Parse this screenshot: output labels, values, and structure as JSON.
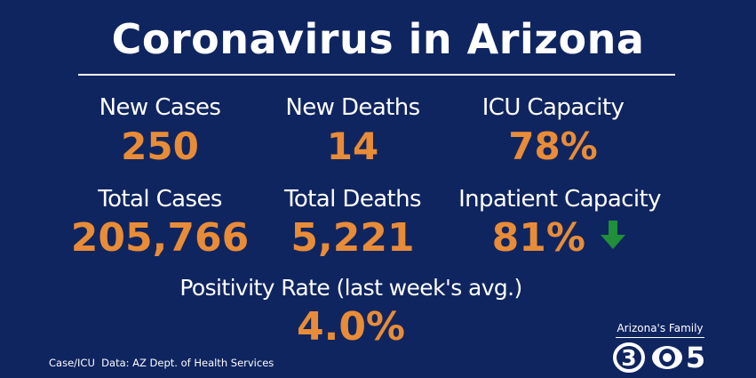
{
  "title": "Coronavirus in Arizona",
  "stats": {
    "new_cases": {
      "label": "New Cases",
      "value": "250"
    },
    "new_deaths": {
      "label": "New Deaths",
      "value": "14"
    },
    "icu_capacity": {
      "label": "ICU Capacity",
      "value": "78%"
    },
    "total_cases": {
      "label": "Total Cases",
      "value": "205,766"
    },
    "total_deaths": {
      "label": "Total Deaths",
      "value": "5,221"
    },
    "inpatient_capacity": {
      "label": "Inpatient Capacity",
      "value": "81%",
      "trend_icon": "arrow-down-icon",
      "trend_color": "#1f8f3a"
    },
    "positivity_rate": {
      "label": "Positivity Rate (last week's avg.)",
      "value": "4.0%"
    }
  },
  "source_note": "Case/ICU  Data: AZ Dept. of Health Services",
  "brand": {
    "name": "Arizona's Family",
    "logo_marks": [
      "3",
      "5"
    ]
  },
  "colors": {
    "background": "#0f2560",
    "value_orange": "#e98c37",
    "text_white": "#ffffff"
  }
}
